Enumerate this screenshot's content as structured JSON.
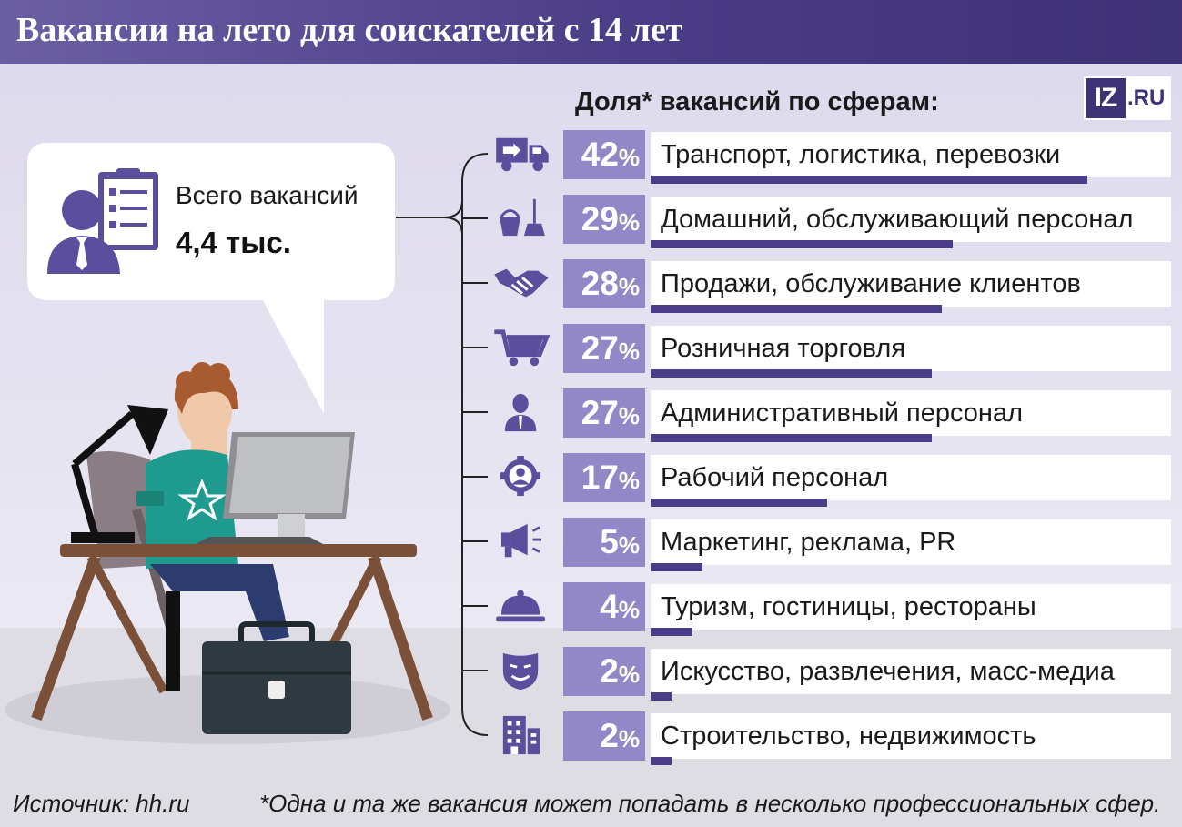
{
  "header": {
    "title": "Вакансии на лето для соискателей с 14 лет"
  },
  "logo": {
    "part1": "IZ",
    "part2": ".RU"
  },
  "summary": {
    "label": "Всего вакансий",
    "value": "4,4 тыс."
  },
  "colors": {
    "header": "#4a3c86",
    "percent_box": "#9388c7",
    "bar": "#4a3c86",
    "icon": "#5b4e9c"
  },
  "chart_data": {
    "type": "bar",
    "title": "Доля* вакансий по сферам:",
    "unit": "%",
    "xlim": [
      0,
      50
    ],
    "categories": [
      "Транспорт, логистика, перевозки",
      "Домашний, обслуживающий персонал",
      "Продажи, обслуживание клиентов",
      "Розничная торговля",
      "Административный персонал",
      "Рабочий персонал",
      "Маркетинг, реклама, PR",
      "Туризм, гостиницы, рестораны",
      "Искусство, развлечения, масс-медиа",
      "Строительство, недвижимость"
    ],
    "values": [
      42,
      29,
      28,
      27,
      27,
      17,
      5,
      4,
      2,
      2
    ],
    "icons": [
      "truck-icon",
      "cleaning-icon",
      "handshake-icon",
      "cart-icon",
      "person-icon",
      "gear-person-icon",
      "megaphone-icon",
      "cloche-icon",
      "mask-icon",
      "building-icon"
    ]
  },
  "footer": {
    "source": "Источник: hh.ru",
    "note": "*Одна и та же вакансия может попадать в несколько профессиональных сфер."
  }
}
